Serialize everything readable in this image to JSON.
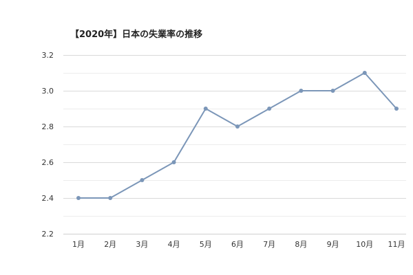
{
  "chart_data": {
    "type": "line",
    "title": "【2020年】日本の失業率の推移",
    "categories": [
      "1月",
      "2月",
      "3月",
      "4月",
      "5月",
      "6月",
      "7月",
      "8月",
      "9月",
      "10月",
      "11月"
    ],
    "series": [
      {
        "values": [
          2.4,
          2.4,
          2.5,
          2.6,
          2.9,
          2.8,
          2.9,
          3.0,
          3.0,
          3.1,
          2.9
        ],
        "color": "#7b96b8"
      }
    ],
    "yticks": [
      "2.2",
      "2.4",
      "2.6",
      "2.8",
      "3.0",
      "3.2"
    ],
    "ylim": [
      2.2,
      3.2
    ],
    "grid": true,
    "legend": "none"
  }
}
